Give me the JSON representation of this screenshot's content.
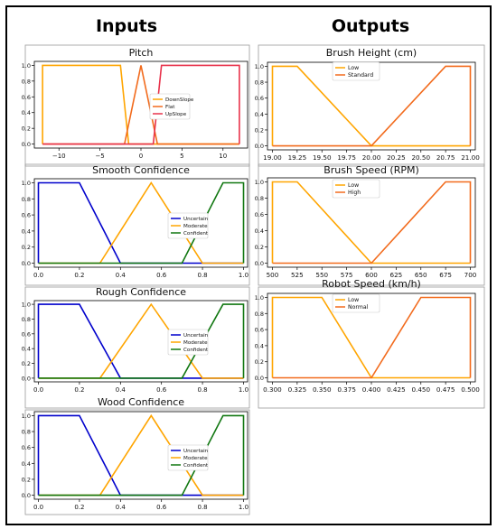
{
  "headings": {
    "inputs": "Inputs",
    "outputs": "Outputs"
  },
  "colors": {
    "orange_light": "#FFA500",
    "orange_dark": "#F26B1D",
    "red": "#E8324B",
    "blue": "#0000CC",
    "green": "#117711",
    "panel_edge": "#999999"
  },
  "chart_data": [
    {
      "type": "line",
      "title": "Pitch",
      "xlim": [
        -13,
        13
      ],
      "ylim": [
        0,
        1
      ],
      "xticks": [
        -10,
        -5,
        0,
        5,
        10
      ],
      "xtick_labels": [
        "−10",
        "−5",
        "0",
        "5",
        "10"
      ],
      "yticks": [
        0,
        0.2,
        0.4,
        0.6,
        0.8,
        1.0
      ],
      "ytick_labels": [
        "0.0",
        "0.2",
        "0.4",
        "0.6",
        "0.8",
        "1.0"
      ],
      "legend": "middle-right",
      "series": [
        {
          "name": "DownSlope",
          "color": "#FFA500",
          "x": [
            -12,
            -12,
            -2.5,
            -1.5,
            12
          ],
          "y": [
            0,
            1,
            1,
            0,
            0
          ]
        },
        {
          "name": "Flat",
          "color": "#F26B1D",
          "x": [
            -12,
            -2,
            0,
            2,
            12
          ],
          "y": [
            0,
            0,
            1,
            0,
            0
          ]
        },
        {
          "name": "UpSlope",
          "color": "#E8324B",
          "x": [
            -12,
            1.5,
            2.5,
            12,
            12
          ],
          "y": [
            0,
            0,
            1,
            1,
            0
          ]
        }
      ]
    },
    {
      "type": "line",
      "title": "Smooth Confidence",
      "xlim": [
        -0.02,
        1.02
      ],
      "ylim": [
        0,
        1
      ],
      "xticks": [
        0,
        0.2,
        0.4,
        0.6,
        0.8,
        1.0
      ],
      "xtick_labels": [
        "0.0",
        "0.2",
        "0.4",
        "0.6",
        "0.8",
        "1.0"
      ],
      "yticks": [
        0,
        0.2,
        0.4,
        0.6,
        0.8,
        1.0
      ],
      "ytick_labels": [
        "0.0",
        "0.2",
        "0.4",
        "0.6",
        "0.8",
        "1.0"
      ],
      "legend": "middle-right",
      "series": [
        {
          "name": "Uncertain",
          "color": "#0000CC",
          "x": [
            0,
            0,
            0.2,
            0.4,
            1.0
          ],
          "y": [
            0,
            1,
            1,
            0,
            0
          ]
        },
        {
          "name": "Moderate",
          "color": "#FFA500",
          "x": [
            0,
            0.3,
            0.55,
            0.8,
            1.0
          ],
          "y": [
            0,
            0,
            1,
            0,
            0
          ]
        },
        {
          "name": "Confident",
          "color": "#117711",
          "x": [
            0,
            0.7,
            0.9,
            1.0,
            1.0
          ],
          "y": [
            0,
            0,
            1,
            1,
            0
          ]
        }
      ]
    },
    {
      "type": "line",
      "title": "Rough Confidence",
      "xlim": [
        -0.02,
        1.02
      ],
      "ylim": [
        0,
        1
      ],
      "xticks": [
        0,
        0.2,
        0.4,
        0.6,
        0.8,
        1.0
      ],
      "xtick_labels": [
        "0.0",
        "0.2",
        "0.4",
        "0.6",
        "0.8",
        "1.0"
      ],
      "yticks": [
        0,
        0.2,
        0.4,
        0.6,
        0.8,
        1.0
      ],
      "ytick_labels": [
        "0.0",
        "0.2",
        "0.4",
        "0.6",
        "0.8",
        "1.0"
      ],
      "legend": "middle-right",
      "series": [
        {
          "name": "Uncertain",
          "color": "#0000CC",
          "x": [
            0,
            0,
            0.2,
            0.4,
            1.0
          ],
          "y": [
            0,
            1,
            1,
            0,
            0
          ]
        },
        {
          "name": "Moderate",
          "color": "#FFA500",
          "x": [
            0,
            0.3,
            0.55,
            0.8,
            1.0
          ],
          "y": [
            0,
            0,
            1,
            0,
            0
          ]
        },
        {
          "name": "Confident",
          "color": "#117711",
          "x": [
            0,
            0.7,
            0.9,
            1.0,
            1.0
          ],
          "y": [
            0,
            0,
            1,
            1,
            0
          ]
        }
      ]
    },
    {
      "type": "line",
      "title": "Wood Confidence",
      "xlim": [
        -0.02,
        1.02
      ],
      "ylim": [
        0,
        1
      ],
      "xticks": [
        0,
        0.2,
        0.4,
        0.6,
        0.8,
        1.0
      ],
      "xtick_labels": [
        "0.0",
        "0.2",
        "0.4",
        "0.6",
        "0.8",
        "1.0"
      ],
      "yticks": [
        0,
        0.2,
        0.4,
        0.6,
        0.8,
        1.0
      ],
      "ytick_labels": [
        "0.0",
        "0.2",
        "0.4",
        "0.6",
        "0.8",
        "1.0"
      ],
      "legend": "middle-right",
      "series": [
        {
          "name": "Uncertain",
          "color": "#0000CC",
          "x": [
            0,
            0,
            0.2,
            0.4,
            1.0
          ],
          "y": [
            0,
            1,
            1,
            0,
            0
          ]
        },
        {
          "name": "Moderate",
          "color": "#FFA500",
          "x": [
            0,
            0.3,
            0.55,
            0.8,
            1.0
          ],
          "y": [
            0,
            0,
            1,
            0,
            0
          ]
        },
        {
          "name": "Confident",
          "color": "#117711",
          "x": [
            0,
            0.7,
            0.9,
            1.0,
            1.0
          ],
          "y": [
            0,
            0,
            1,
            1,
            0
          ]
        }
      ]
    },
    {
      "type": "line",
      "title": "Brush Height (cm)",
      "xlim": [
        18.95,
        21.05
      ],
      "ylim": [
        0,
        1
      ],
      "xticks": [
        19.0,
        19.25,
        19.5,
        19.75,
        20.0,
        20.25,
        20.5,
        20.75,
        21.0
      ],
      "xtick_labels": [
        "19.00",
        "19.25",
        "19.50",
        "19.75",
        "20.00",
        "20.25",
        "20.50",
        "20.75",
        "21.00"
      ],
      "yticks": [
        0,
        0.2,
        0.4,
        0.6,
        0.8,
        1.0
      ],
      "ytick_labels": [
        "0.0",
        "0.2",
        "0.4",
        "0.6",
        "0.8",
        "1.0"
      ],
      "legend": "top-center",
      "series": [
        {
          "name": "Low",
          "color": "#FFA500",
          "x": [
            19.0,
            19.0,
            19.25,
            20.0,
            21.0
          ],
          "y": [
            0,
            1,
            1,
            0,
            0
          ]
        },
        {
          "name": "Standard",
          "color": "#F26B1D",
          "x": [
            19.0,
            20.0,
            20.75,
            21.0,
            21.0
          ],
          "y": [
            0,
            0,
            1,
            1,
            0
          ]
        }
      ]
    },
    {
      "type": "line",
      "title": "Brush Speed (RPM)",
      "xlim": [
        495,
        705
      ],
      "ylim": [
        0,
        1
      ],
      "xticks": [
        500,
        525,
        550,
        575,
        600,
        625,
        650,
        675,
        700
      ],
      "xtick_labels": [
        "500",
        "525",
        "550",
        "575",
        "600",
        "625",
        "650",
        "675",
        "700"
      ],
      "yticks": [
        0,
        0.2,
        0.4,
        0.6,
        0.8,
        1.0
      ],
      "ytick_labels": [
        "0.0",
        "0.2",
        "0.4",
        "0.6",
        "0.8",
        "1.0"
      ],
      "legend": "top-center",
      "series": [
        {
          "name": "Low",
          "color": "#FFA500",
          "x": [
            500,
            500,
            525,
            600,
            700
          ],
          "y": [
            0,
            1,
            1,
            0,
            0
          ]
        },
        {
          "name": "High",
          "color": "#F26B1D",
          "x": [
            500,
            600,
            675,
            700,
            700
          ],
          "y": [
            0,
            0,
            1,
            1,
            0
          ]
        }
      ]
    },
    {
      "type": "line",
      "title": "Robot Speed (km/h)",
      "xlim": [
        0.295,
        0.505
      ],
      "ylim": [
        0,
        1
      ],
      "xticks": [
        0.3,
        0.325,
        0.35,
        0.375,
        0.4,
        0.425,
        0.45,
        0.475,
        0.5
      ],
      "xtick_labels": [
        "0.300",
        "0.325",
        "0.350",
        "0.375",
        "0.400",
        "0.425",
        "0.450",
        "0.475",
        "0.500"
      ],
      "yticks": [
        0,
        0.2,
        0.4,
        0.6,
        0.8,
        1.0
      ],
      "ytick_labels": [
        "0.0",
        "0.2",
        "0.4",
        "0.6",
        "0.8",
        "1.0"
      ],
      "legend": "top-center",
      "series": [
        {
          "name": "Low",
          "color": "#FFA500",
          "x": [
            0.3,
            0.3,
            0.35,
            0.4,
            0.5
          ],
          "y": [
            0,
            1,
            1,
            0,
            0
          ]
        },
        {
          "name": "Normal",
          "color": "#F26B1D",
          "x": [
            0.3,
            0.4,
            0.45,
            0.5,
            0.5
          ],
          "y": [
            0,
            0,
            1,
            1,
            0
          ]
        }
      ]
    }
  ]
}
